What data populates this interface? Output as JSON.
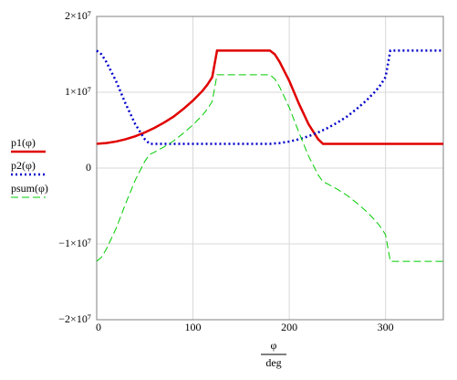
{
  "chart_data": {
    "type": "line",
    "xlabel": [
      "φ",
      "deg"
    ],
    "x": [
      0,
      5,
      10,
      20,
      30,
      40,
      50,
      55,
      60,
      70,
      80,
      90,
      100,
      110,
      115,
      120,
      125,
      180,
      185,
      190,
      200,
      210,
      220,
      230,
      235,
      240,
      250,
      260,
      270,
      280,
      290,
      295,
      300,
      305,
      360
    ],
    "series": [
      {
        "name": "p1(φ)",
        "color": "#e00000",
        "dash": "solid",
        "values": [
          3200000,
          3250000,
          3300000,
          3500000,
          3800000,
          4200000,
          4700000,
          5000000,
          5300000,
          6000000,
          6800000,
          7800000,
          8900000,
          10200000,
          11000000,
          12000000,
          15500000,
          15500000,
          15000000,
          14000000,
          11500000,
          8500000,
          5800000,
          3800000,
          3200000,
          3200000,
          3200000,
          3200000,
          3200000,
          3200000,
          3200000,
          3200000,
          3200000,
          3200000,
          3200000
        ]
      },
      {
        "name": "p2(φ)",
        "color": "#0000cc",
        "dash": "dotted",
        "values": [
          15500000,
          15000000,
          14000000,
          11500000,
          8500000,
          5800000,
          3800000,
          3200000,
          3200000,
          3200000,
          3200000,
          3200000,
          3200000,
          3200000,
          3200000,
          3200000,
          3200000,
          3200000,
          3250000,
          3300000,
          3500000,
          3800000,
          4200000,
          4700000,
          5000000,
          5300000,
          6000000,
          6800000,
          7800000,
          8900000,
          10200000,
          11000000,
          12000000,
          15500000,
          15500000
        ]
      },
      {
        "name": "psum(φ)",
        "color": "#00cc00",
        "dash": "dashed",
        "values": [
          -12300000,
          -11750000,
          -10700000,
          -8000000,
          -4700000,
          -1600000,
          900000,
          1800000,
          2100000,
          2800000,
          3600000,
          4600000,
          5700000,
          7000000,
          7800000,
          8800000,
          12300000,
          12300000,
          11750000,
          10700000,
          8000000,
          4700000,
          1600000,
          -900000,
          -1800000,
          -2100000,
          -2800000,
          -3600000,
          -4600000,
          -5700000,
          -7000000,
          -7800000,
          -8800000,
          -12300000,
          -12300000
        ]
      }
    ],
    "xlim": [
      0,
      360
    ],
    "xticks": [
      0,
      100,
      200,
      300
    ],
    "ylim": [
      -20000000,
      20000000
    ],
    "yticks": [
      {
        "value": -20000000,
        "label": "−2×10⁷"
      },
      {
        "value": -10000000,
        "label": "−1×10⁷"
      },
      0,
      {
        "value": 10000000,
        "label": "1×10⁷"
      },
      {
        "value": 20000000,
        "label": "2×10⁷"
      }
    ],
    "grid": true
  }
}
